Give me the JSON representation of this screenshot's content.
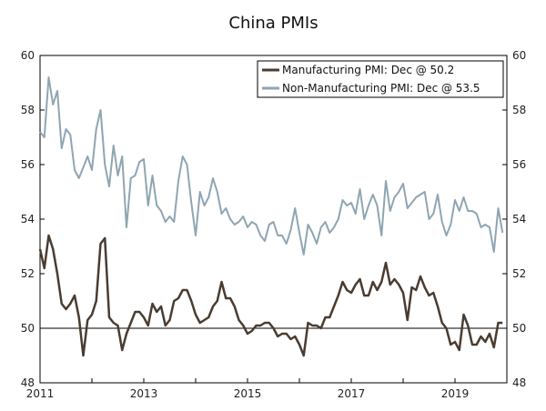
{
  "chart_data": {
    "type": "line",
    "title": "China PMIs",
    "xlabel": "",
    "ylabel": "",
    "x_range": [
      2011.0,
      2020.0
    ],
    "ylim": [
      48,
      60
    ],
    "y_ticks": [
      48,
      50,
      52,
      54,
      56,
      58,
      60
    ],
    "x_ticks": [
      2011,
      2013,
      2015,
      2017,
      2019
    ],
    "reference_line": 50,
    "grid": false,
    "legend_position": "top-right",
    "series": [
      {
        "name": "Manufacturing PMI: Dec @ 50.2",
        "color": "#4a3c30",
        "start": "2011-01",
        "values": [
          52.9,
          52.2,
          53.4,
          52.9,
          52.0,
          50.9,
          50.7,
          50.9,
          51.2,
          50.4,
          49.0,
          50.3,
          50.5,
          51.0,
          53.1,
          53.3,
          50.4,
          50.2,
          50.1,
          49.2,
          49.8,
          50.2,
          50.6,
          50.6,
          50.4,
          50.1,
          50.9,
          50.6,
          50.8,
          50.1,
          50.3,
          51.0,
          51.1,
          51.4,
          51.4,
          51.0,
          50.5,
          50.2,
          50.3,
          50.4,
          50.8,
          51.0,
          51.7,
          51.1,
          51.1,
          50.8,
          50.3,
          50.1,
          49.8,
          49.9,
          50.1,
          50.1,
          50.2,
          50.2,
          50.0,
          49.7,
          49.8,
          49.8,
          49.6,
          49.7,
          49.4,
          49.0,
          50.2,
          50.1,
          50.1,
          50.0,
          50.4,
          50.4,
          50.8,
          51.2,
          51.7,
          51.4,
          51.3,
          51.6,
          51.8,
          51.2,
          51.2,
          51.7,
          51.4,
          51.7,
          52.4,
          51.6,
          51.8,
          51.6,
          51.3,
          50.3,
          51.5,
          51.4,
          51.9,
          51.5,
          51.2,
          51.3,
          50.8,
          50.2,
          50.0,
          49.4,
          49.5,
          49.2,
          50.5,
          50.1,
          49.4,
          49.4,
          49.7,
          49.5,
          49.8,
          49.3,
          50.2,
          50.2
        ]
      },
      {
        "name": "Non-Manufacturing PMI: Dec @ 53.5",
        "color": "#8fa5b2",
        "start": "2011-01",
        "values": [
          57.2,
          57.0,
          59.2,
          58.2,
          58.7,
          56.6,
          57.3,
          57.1,
          55.8,
          55.5,
          55.9,
          56.3,
          55.8,
          57.3,
          58.0,
          56.0,
          55.2,
          56.7,
          55.6,
          56.3,
          53.7,
          55.5,
          55.6,
          56.1,
          56.2,
          54.5,
          55.6,
          54.5,
          54.3,
          53.9,
          54.1,
          53.9,
          55.4,
          56.3,
          56.0,
          54.6,
          53.4,
          55.0,
          54.5,
          54.8,
          55.5,
          55.0,
          54.2,
          54.4,
          54.0,
          53.8,
          53.9,
          54.1,
          53.7,
          53.9,
          53.8,
          53.4,
          53.2,
          53.8,
          53.9,
          53.4,
          53.4,
          53.1,
          53.6,
          54.4,
          53.5,
          52.7,
          53.8,
          53.5,
          53.1,
          53.7,
          53.9,
          53.5,
          53.7,
          54.0,
          54.7,
          54.5,
          54.6,
          54.2,
          55.1,
          54.0,
          54.5,
          54.9,
          54.5,
          53.4,
          55.4,
          54.3,
          54.8,
          55.0,
          55.3,
          54.4,
          54.6,
          54.8,
          54.9,
          55.0,
          54.0,
          54.2,
          54.9,
          53.9,
          53.4,
          53.8,
          54.7,
          54.3,
          54.8,
          54.3,
          54.3,
          54.2,
          53.7,
          53.8,
          53.7,
          52.8,
          54.4,
          53.5
        ]
      }
    ]
  }
}
